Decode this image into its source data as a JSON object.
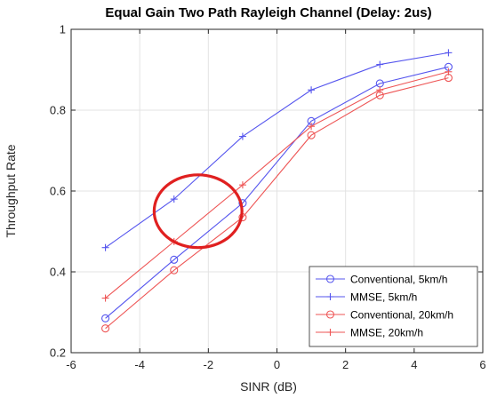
{
  "chart_data": {
    "type": "line",
    "title": "Equal Gain Two Path Rayleigh Channel (Delay: 2us)",
    "xlabel": "SINR (dB)",
    "ylabel": "Throughput Rate",
    "xlim": [
      -6,
      6
    ],
    "ylim": [
      0.2,
      1.0
    ],
    "xticks": [
      -6,
      -4,
      -2,
      0,
      2,
      4,
      6
    ],
    "yticks": [
      0.2,
      0.4,
      0.6,
      0.8,
      1.0
    ],
    "xtick_labels": [
      "-6",
      "-4",
      "-2",
      "0",
      "2",
      "4",
      "6"
    ],
    "ytick_labels": [
      "0.2",
      "0.4",
      "0.6",
      "0.8",
      "1"
    ],
    "grid": true,
    "legend_position": "bottom-right",
    "x": [
      -5,
      -3,
      -1,
      1,
      3,
      5
    ],
    "series": [
      {
        "name": "Conventional, 5km/h",
        "color": "#5555ee",
        "marker": "circle",
        "values": [
          0.285,
          0.43,
          0.57,
          0.773,
          0.866,
          0.907
        ]
      },
      {
        "name": "MMSE, 5km/h",
        "color": "#5555ee",
        "marker": "plus",
        "values": [
          0.46,
          0.58,
          0.735,
          0.85,
          0.913,
          0.942
        ]
      },
      {
        "name": "Conventional, 20km/h",
        "color": "#ee5555",
        "marker": "circle",
        "values": [
          0.26,
          0.404,
          0.535,
          0.738,
          0.837,
          0.88
        ]
      },
      {
        "name": "MMSE, 20km/h",
        "color": "#ee5555",
        "marker": "plus",
        "values": [
          0.335,
          0.475,
          0.615,
          0.76,
          0.85,
          0.895
        ]
      }
    ],
    "annotations": [
      {
        "type": "ellipse",
        "center": [
          -2.3,
          0.55
        ],
        "radius_x_data": 1.28,
        "radius_y_data": 0.09,
        "color": "#e02020"
      }
    ]
  }
}
